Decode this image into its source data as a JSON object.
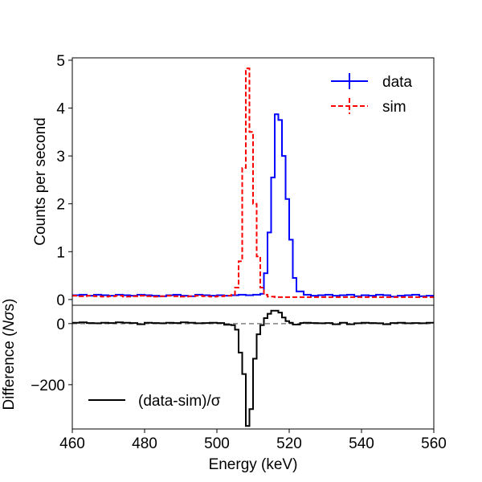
{
  "chart_data": [
    {
      "type": "line",
      "panel": "top",
      "ylabel": "Counts per second",
      "xlim": [
        460,
        560
      ],
      "ylim": [
        -0.12,
        5.05
      ],
      "yticks": [
        0,
        1,
        2,
        3,
        4,
        5
      ],
      "ytick_labels": [
        "0",
        "1",
        "2",
        "3",
        "4",
        "5"
      ],
      "legend": {
        "location": "top-right",
        "entries": [
          "data",
          "sim"
        ]
      },
      "series": [
        {
          "name": "data",
          "color": "#0000ff",
          "style": "solid-step",
          "x": [
            460,
            462,
            464,
            466,
            468,
            470,
            472,
            474,
            476,
            478,
            480,
            482,
            484,
            486,
            488,
            490,
            492,
            494,
            496,
            498,
            500,
            502,
            504,
            506,
            508,
            510,
            512,
            513,
            514,
            515,
            516,
            517,
            518,
            519,
            520,
            521,
            522,
            524,
            526,
            528,
            530,
            532,
            534,
            536,
            538,
            540,
            542,
            544,
            546,
            548,
            550,
            552,
            554,
            556,
            558
          ],
          "values": [
            0.09,
            0.1,
            0.08,
            0.1,
            0.09,
            0.08,
            0.1,
            0.09,
            0.08,
            0.1,
            0.09,
            0.08,
            0.07,
            0.09,
            0.1,
            0.08,
            0.07,
            0.1,
            0.09,
            0.08,
            0.09,
            0.08,
            0.09,
            0.1,
            0.09,
            0.1,
            0.12,
            0.55,
            1.4,
            2.55,
            3.87,
            3.75,
            3.0,
            2.1,
            1.25,
            0.45,
            0.17,
            0.1,
            0.08,
            0.09,
            0.1,
            0.08,
            0.09,
            0.1,
            0.07,
            0.09,
            0.08,
            0.1,
            0.09,
            0.06,
            0.08,
            0.09,
            0.1,
            0.07,
            0.08
          ]
        },
        {
          "name": "sim",
          "color": "#ff0000",
          "style": "dashed-step",
          "x": [
            460,
            462,
            464,
            466,
            468,
            470,
            472,
            474,
            476,
            478,
            480,
            482,
            484,
            486,
            488,
            490,
            492,
            494,
            496,
            498,
            500,
            502,
            504,
            505,
            506,
            507,
            508,
            509,
            510,
            511,
            512,
            513,
            514,
            516,
            518,
            520,
            522,
            524,
            526,
            528,
            530,
            532,
            534,
            536,
            538,
            540,
            542,
            544,
            546,
            548,
            550,
            552,
            554,
            556,
            558
          ],
          "values": [
            0.08,
            0.07,
            0.08,
            0.07,
            0.06,
            0.07,
            0.08,
            0.06,
            0.07,
            0.08,
            0.07,
            0.06,
            0.07,
            0.08,
            0.07,
            0.06,
            0.07,
            0.08,
            0.07,
            0.06,
            0.07,
            0.08,
            0.1,
            0.25,
            0.8,
            2.75,
            4.83,
            3.5,
            2.0,
            0.9,
            0.25,
            0.1,
            0.06,
            0.05,
            0.05,
            0.05,
            0.05,
            0.05,
            0.05,
            0.05,
            0.05,
            0.05,
            0.05,
            0.05,
            0.05,
            0.05,
            0.05,
            0.05,
            0.05,
            0.05,
            0.05,
            0.05,
            0.05,
            0.05,
            0.05
          ]
        }
      ]
    },
    {
      "type": "line",
      "panel": "bottom",
      "xlabel": "Energy (keV)",
      "ylabel_prefix": "Difference (",
      "ylabel_italic": "N",
      "ylabel_sigma": "σ",
      "ylabel_suffix": "s)",
      "xlim": [
        460,
        560
      ],
      "ylim": [
        -345,
        60
      ],
      "xticks": [
        460,
        480,
        500,
        520,
        540,
        560
      ],
      "xtick_labels": [
        "460",
        "480",
        "500",
        "520",
        "540",
        "560"
      ],
      "yticks": [
        0,
        -200
      ],
      "ytick_labels": [
        "0",
        "−200"
      ],
      "zero_line": {
        "y": 0,
        "color": "#808080",
        "style": "dashed"
      },
      "legend": {
        "location": "bottom-left",
        "entries": [
          "(data-sim)/σ"
        ]
      },
      "series": [
        {
          "name": "(data-sim)/σ",
          "color": "#000000",
          "style": "solid-step",
          "x": [
            460,
            462,
            464,
            466,
            468,
            470,
            472,
            474,
            476,
            478,
            480,
            482,
            484,
            486,
            488,
            490,
            492,
            494,
            496,
            498,
            500,
            502,
            504,
            505,
            506,
            507,
            508,
            509,
            510,
            511,
            512,
            513,
            514,
            515,
            516,
            517,
            518,
            519,
            520,
            521,
            522,
            523,
            524,
            526,
            528,
            530,
            532,
            534,
            536,
            538,
            540,
            542,
            544,
            546,
            548,
            550,
            552,
            554,
            556,
            558
          ],
          "values": [
            3,
            4,
            2,
            1,
            3,
            2,
            4,
            3,
            2,
            -2,
            3,
            2,
            1,
            3,
            2,
            4,
            3,
            1,
            2,
            3,
            2,
            -4,
            -5,
            -20,
            -95,
            -165,
            -335,
            -280,
            -115,
            -35,
            -5,
            18,
            32,
            42,
            42,
            36,
            20,
            8,
            3,
            -3,
            -3,
            2,
            3,
            2,
            1,
            2,
            -2,
            3,
            -2,
            1,
            3,
            2,
            1,
            -2,
            2,
            3,
            1,
            2,
            1,
            3
          ]
        }
      ]
    }
  ]
}
